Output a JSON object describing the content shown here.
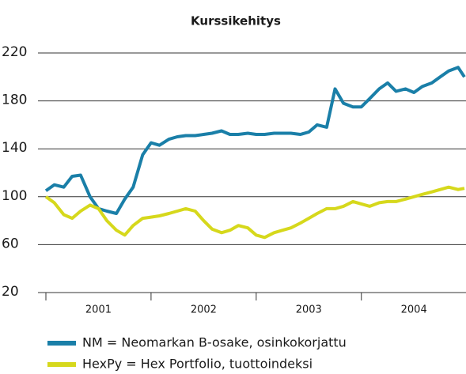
{
  "chart_data": {
    "type": "line",
    "title": "Kurssikehitys",
    "categories": [
      "2001",
      "2002",
      "2003",
      "2004"
    ],
    "x": [
      2001.0,
      2001.08,
      2001.17,
      2001.25,
      2001.33,
      2001.42,
      2001.5,
      2001.58,
      2001.67,
      2001.75,
      2001.83,
      2001.92,
      2002.0,
      2002.08,
      2002.17,
      2002.25,
      2002.33,
      2002.42,
      2002.5,
      2002.58,
      2002.67,
      2002.75,
      2002.83,
      2002.92,
      2003.0,
      2003.08,
      2003.17,
      2003.25,
      2003.33,
      2003.42,
      2003.5,
      2003.58,
      2003.67,
      2003.75,
      2003.83,
      2003.92,
      2004.0,
      2004.08,
      2004.17,
      2004.25,
      2004.33,
      2004.42,
      2004.5,
      2004.58,
      2004.67,
      2004.75,
      2004.83,
      2004.92,
      2004.98
    ],
    "series": [
      {
        "name": "NM = Neomarkan B-osake, osinkokorjattu",
        "color": "#1a7fa8",
        "values": [
          105,
          110,
          108,
          117,
          118,
          100,
          90,
          88,
          86,
          98,
          108,
          135,
          145,
          143,
          148,
          150,
          151,
          151,
          152,
          153,
          155,
          152,
          152,
          153,
          152,
          152,
          153,
          153,
          153,
          152,
          154,
          160,
          158,
          190,
          178,
          175,
          175,
          182,
          190,
          195,
          188,
          190,
          187,
          192,
          195,
          200,
          205,
          208,
          200
        ]
      },
      {
        "name": "HexPy = Hex Portfolio, tuottoindeksi",
        "color": "#d6d81c",
        "values": [
          100,
          95,
          85,
          82,
          88,
          93,
          90,
          80,
          72,
          68,
          76,
          82,
          83,
          84,
          86,
          88,
          90,
          88,
          80,
          73,
          70,
          72,
          76,
          74,
          68,
          66,
          70,
          72,
          74,
          78,
          82,
          86,
          90,
          90,
          92,
          96,
          94,
          92,
          95,
          96,
          96,
          98,
          100,
          102,
          104,
          106,
          108,
          106,
          107
        ]
      }
    ],
    "xlim": [
      2001,
      2004.98
    ],
    "xticks": [
      2001,
      2002,
      2003,
      2004
    ],
    "ylim": [
      20,
      220
    ],
    "yticks": [
      20,
      60,
      100,
      140,
      180,
      220
    ],
    "grid": true
  }
}
